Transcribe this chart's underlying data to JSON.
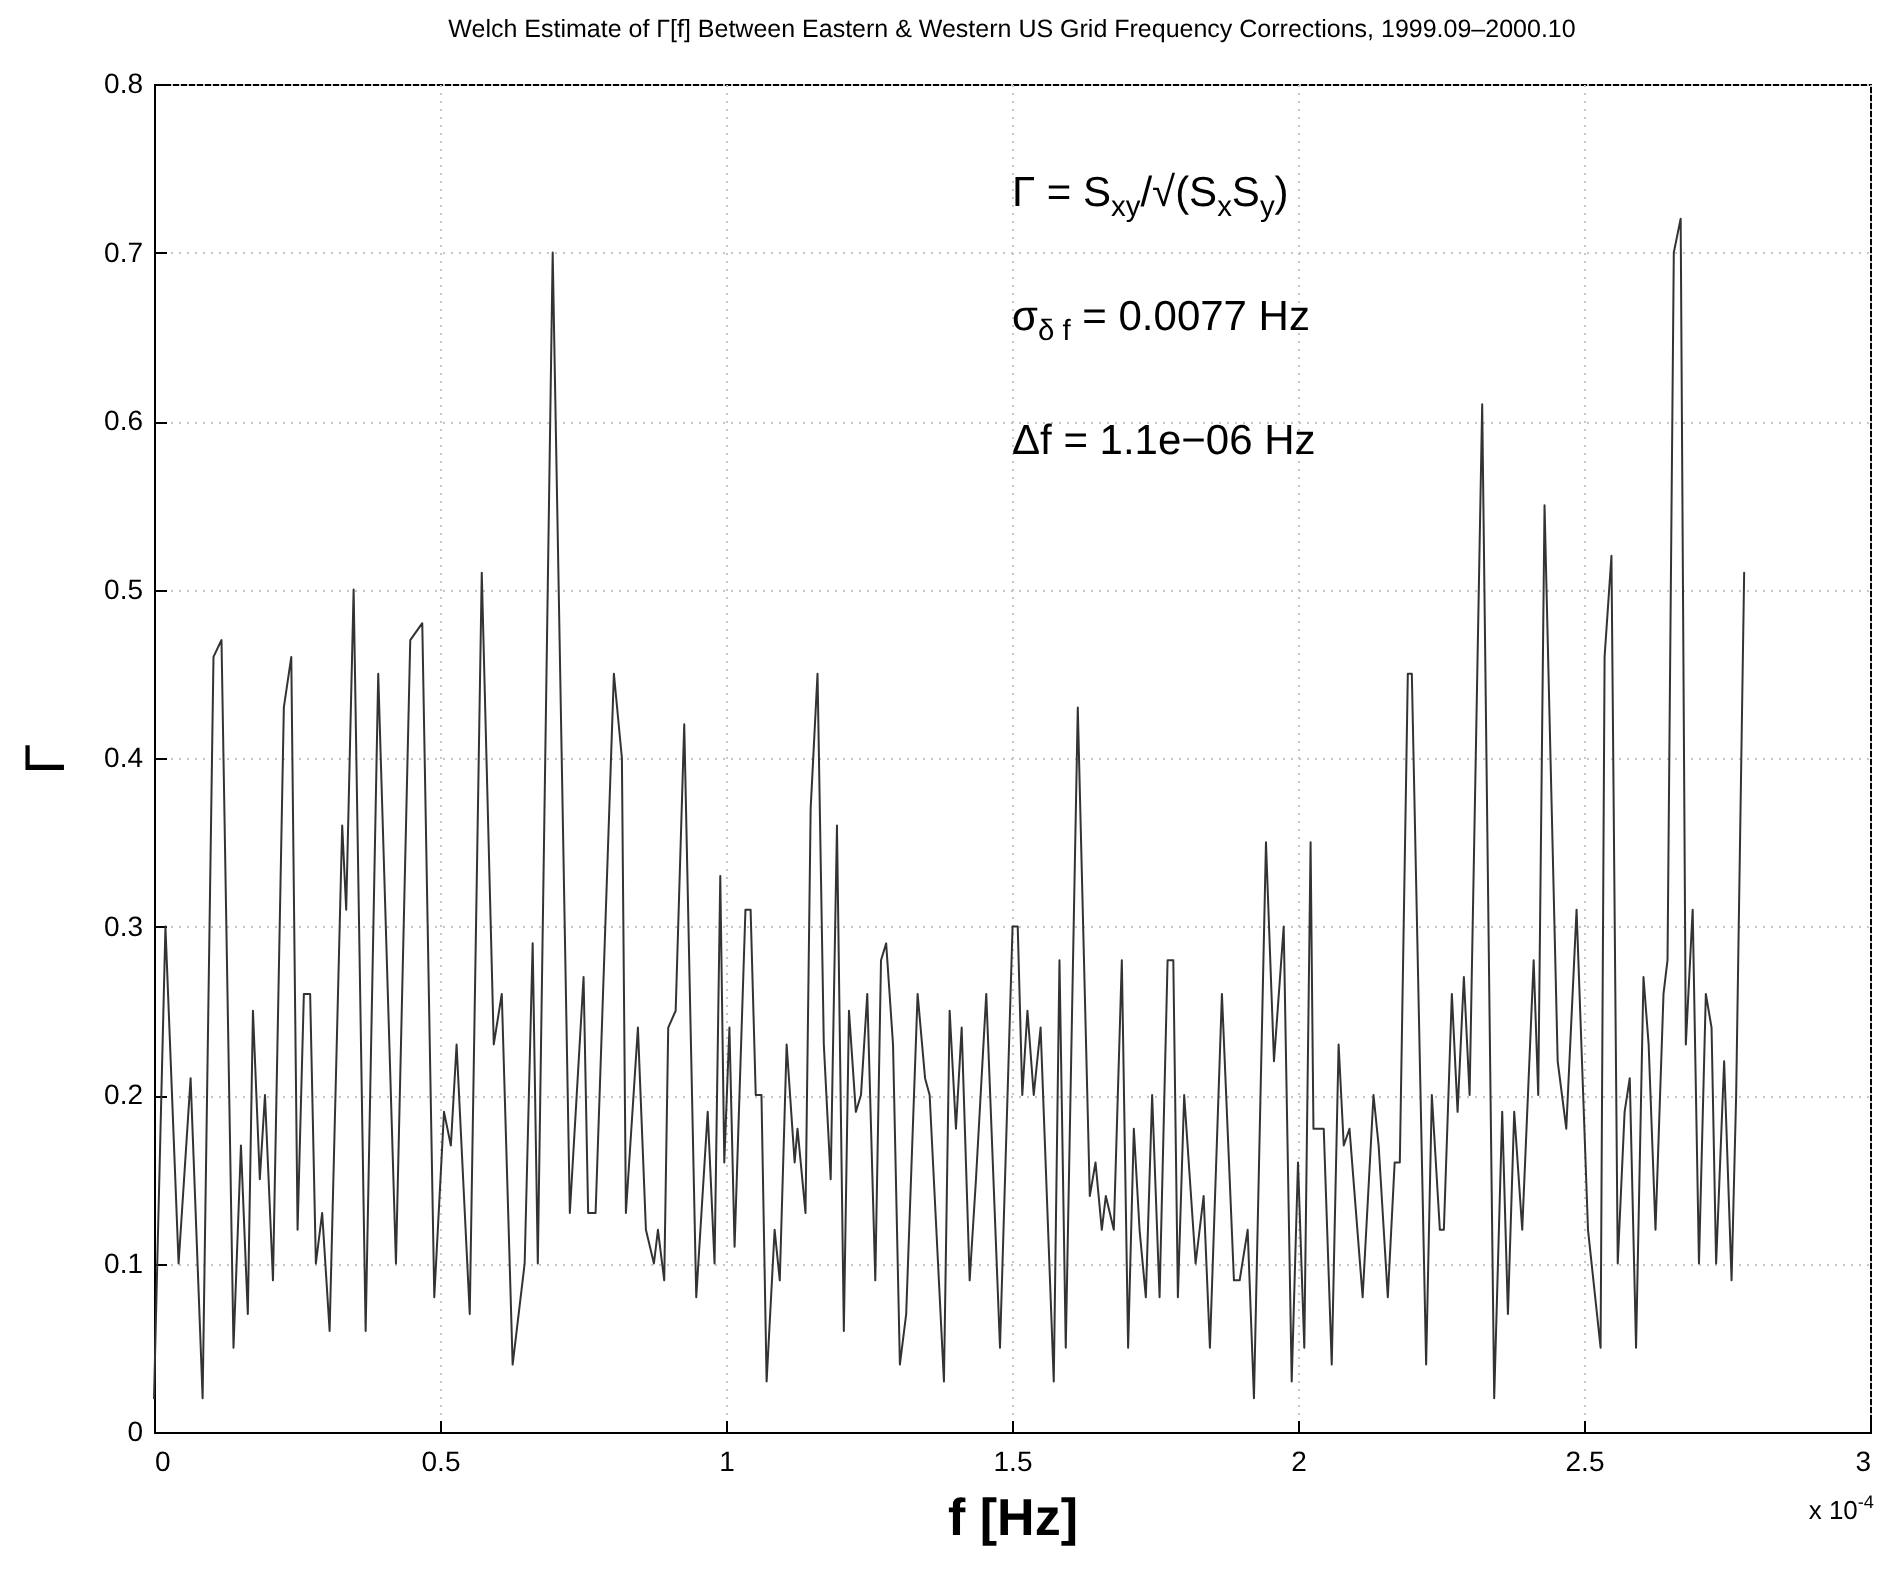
{
  "chart_data": {
    "type": "line",
    "title": "Welch Estimate of Γ[f] Between Eastern & Western US Grid Frequency Corrections, 1999.09–2000.10",
    "xlabel": "f [Hz]",
    "ylabel": "Γ",
    "annotations": [
      "Γ = S$_{xy}$/√(S$_{x}$S$_{y}$)",
      "σ$_{δ f}$ = 0.0077 Hz",
      "Δf = 1.1e−06 Hz",
      "x 10$^{-4}$"
    ],
    "xlim": [
      0,
      3
    ],
    "xticks": [
      0,
      0.5,
      1,
      1.5,
      2,
      2.5,
      3
    ],
    "ylim": [
      0,
      0.8
    ],
    "yticks": [
      0,
      0.1,
      0.2,
      0.3,
      0.4,
      0.5,
      0.6,
      0.7,
      0.8
    ],
    "grid": true,
    "line_style": "solid",
    "series": [
      {
        "color": "#333333",
        "x": [
          0,
          0.02,
          0.043,
          0.064,
          0.085,
          0.104,
          0.118,
          0.139,
          0.152,
          0.164,
          0.173,
          0.185,
          0.194,
          0.208,
          0.227,
          0.24,
          0.251,
          0.262,
          0.273,
          0.283,
          0.294,
          0.307,
          0.329,
          0.336,
          0.349,
          0.37,
          0.392,
          0.423,
          0.448,
          0.469,
          0.49,
          0.507,
          0.519,
          0.529,
          0.552,
          0.573,
          0.594,
          0.608,
          0.627,
          0.648,
          0.662,
          0.671,
          0.697,
          0.727,
          0.751,
          0.759,
          0.772,
          0.804,
          0.818,
          0.825,
          0.846,
          0.86,
          0.874,
          0.881,
          0.892,
          0.899,
          0.912,
          0.927,
          0.948,
          0.968,
          0.98,
          0.99,
          0.997,
          1.006,
          1.015,
          1.034,
          1.043,
          1.052,
          1.062,
          1.071,
          1.085,
          1.094,
          1.106,
          1.12,
          1.125,
          1.139,
          1.148,
          1.16,
          1.171,
          1.183,
          1.194,
          1.206,
          1.215,
          1.227,
          1.236,
          1.247,
          1.261,
          1.271,
          1.28,
          1.292,
          1.304,
          1.315,
          1.335,
          1.348,
          1.356,
          1.381,
          1.391,
          1.402,
          1.412,
          1.426,
          1.437,
          1.455,
          1.479,
          1.501,
          1.51,
          1.518,
          1.527,
          1.538,
          1.55,
          1.573,
          1.583,
          1.594,
          1.615,
          1.636,
          1.646,
          1.657,
          1.664,
          1.678,
          1.692,
          1.703,
          1.713,
          1.723,
          1.734,
          1.745,
          1.758,
          1.772,
          1.782,
          1.79,
          1.801,
          1.821,
          1.835,
          1.846,
          1.867,
          1.888,
          1.898,
          1.912,
          1.923,
          1.944,
          1.958,
          1.975,
          1.989,
          2.0,
          2.011,
          2.022,
          2.027,
          2.045,
          2.059,
          2.071,
          2.08,
          2.09,
          2.113,
          2.132,
          2.141,
          2.157,
          2.169,
          2.178,
          2.192,
          2.199,
          2.224,
          2.234,
          2.248,
          2.255,
          2.269,
          2.279,
          2.29,
          2.3,
          2.322,
          2.343,
          2.357,
          2.367,
          2.378,
          2.392,
          2.412,
          2.42,
          2.431,
          2.454,
          2.469,
          2.487,
          2.507,
          2.529,
          2.536,
          2.548,
          2.559,
          2.571,
          2.58,
          2.591,
          2.604,
          2.613,
          2.625,
          2.639,
          2.646,
          2.657,
          2.669,
          2.678,
          2.69,
          2.701,
          2.713,
          2.723,
          2.731,
          2.745,
          2.758,
          2.766,
          2.78
        ],
        "values": [
          0.02,
          0.3,
          0.1,
          0.21,
          0.02,
          0.46,
          0.47,
          0.05,
          0.17,
          0.07,
          0.25,
          0.15,
          0.2,
          0.09,
          0.43,
          0.46,
          0.12,
          0.26,
          0.26,
          0.1,
          0.13,
          0.06,
          0.36,
          0.31,
          0.5,
          0.06,
          0.45,
          0.1,
          0.47,
          0.48,
          0.08,
          0.19,
          0.17,
          0.23,
          0.07,
          0.51,
          0.23,
          0.26,
          0.04,
          0.1,
          0.29,
          0.1,
          0.7,
          0.13,
          0.27,
          0.13,
          0.13,
          0.45,
          0.4,
          0.13,
          0.24,
          0.12,
          0.1,
          0.12,
          0.09,
          0.24,
          0.25,
          0.42,
          0.08,
          0.19,
          0.1,
          0.33,
          0.16,
          0.24,
          0.11,
          0.31,
          0.31,
          0.2,
          0.2,
          0.03,
          0.12,
          0.09,
          0.23,
          0.16,
          0.18,
          0.13,
          0.37,
          0.45,
          0.23,
          0.15,
          0.36,
          0.06,
          0.25,
          0.19,
          0.2,
          0.26,
          0.09,
          0.28,
          0.29,
          0.23,
          0.04,
          0.07,
          0.26,
          0.21,
          0.2,
          0.03,
          0.25,
          0.18,
          0.24,
          0.09,
          0.15,
          0.26,
          0.05,
          0.3,
          0.3,
          0.2,
          0.25,
          0.2,
          0.24,
          0.03,
          0.28,
          0.05,
          0.43,
          0.14,
          0.16,
          0.12,
          0.14,
          0.12,
          0.28,
          0.05,
          0.18,
          0.12,
          0.08,
          0.2,
          0.08,
          0.28,
          0.28,
          0.08,
          0.2,
          0.1,
          0.14,
          0.05,
          0.26,
          0.09,
          0.09,
          0.12,
          0.02,
          0.35,
          0.22,
          0.3,
          0.03,
          0.16,
          0.05,
          0.35,
          0.18,
          0.18,
          0.04,
          0.23,
          0.17,
          0.18,
          0.08,
          0.2,
          0.17,
          0.08,
          0.16,
          0.16,
          0.45,
          0.45,
          0.04,
          0.2,
          0.12,
          0.12,
          0.26,
          0.19,
          0.27,
          0.2,
          0.61,
          0.02,
          0.19,
          0.07,
          0.19,
          0.12,
          0.28,
          0.2,
          0.55,
          0.22,
          0.18,
          0.31,
          0.12,
          0.05,
          0.46,
          0.52,
          0.1,
          0.19,
          0.21,
          0.05,
          0.27,
          0.23,
          0.12,
          0.26,
          0.28,
          0.7,
          0.72,
          0.23,
          0.31,
          0.1,
          0.26,
          0.24,
          0.1,
          0.22,
          0.09,
          0.2,
          0.51
        ]
      }
    ]
  }
}
